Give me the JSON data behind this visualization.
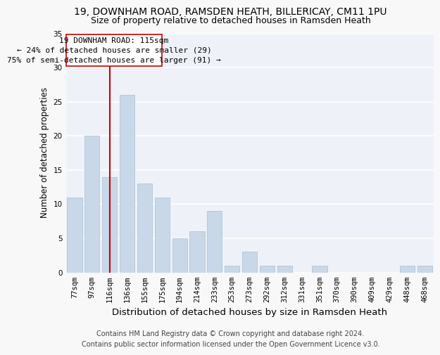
{
  "title1": "19, DOWNHAM ROAD, RAMSDEN HEATH, BILLERICAY, CM11 1PU",
  "title2": "Size of property relative to detached houses in Ramsden Heath",
  "xlabel": "Distribution of detached houses by size in Ramsden Heath",
  "ylabel": "Number of detached properties",
  "categories": [
    "77sqm",
    "97sqm",
    "116sqm",
    "136sqm",
    "155sqm",
    "175sqm",
    "194sqm",
    "214sqm",
    "233sqm",
    "253sqm",
    "273sqm",
    "292sqm",
    "312sqm",
    "331sqm",
    "351sqm",
    "370sqm",
    "390sqm",
    "409sqm",
    "429sqm",
    "448sqm",
    "468sqm"
  ],
  "values": [
    11,
    20,
    14,
    26,
    13,
    11,
    5,
    6,
    9,
    1,
    3,
    1,
    1,
    0,
    1,
    0,
    0,
    0,
    0,
    1,
    1
  ],
  "bar_color": "#c8d8e8",
  "bar_edge_color": "#a8bfd0",
  "vline_x": 2.0,
  "vline_color": "#cc0000",
  "annotation_text": "19 DOWNHAM ROAD: 115sqm\n← 24% of detached houses are smaller (29)\n75% of semi-detached houses are larger (91) →",
  "annotation_box_color": "#ffffff",
  "annotation_box_edgecolor": "#cc0000",
  "ylim": [
    0,
    35
  ],
  "yticks": [
    0,
    5,
    10,
    15,
    20,
    25,
    30,
    35
  ],
  "background_color": "#eef2f8",
  "grid_color": "#ffffff",
  "footer": "Contains HM Land Registry data © Crown copyright and database right 2024.\nContains public sector information licensed under the Open Government Licence v3.0.",
  "title_fontsize": 10,
  "subtitle_fontsize": 9,
  "xlabel_fontsize": 9.5,
  "ylabel_fontsize": 8.5,
  "tick_fontsize": 7.5,
  "annot_fontsize": 8,
  "footer_fontsize": 7
}
